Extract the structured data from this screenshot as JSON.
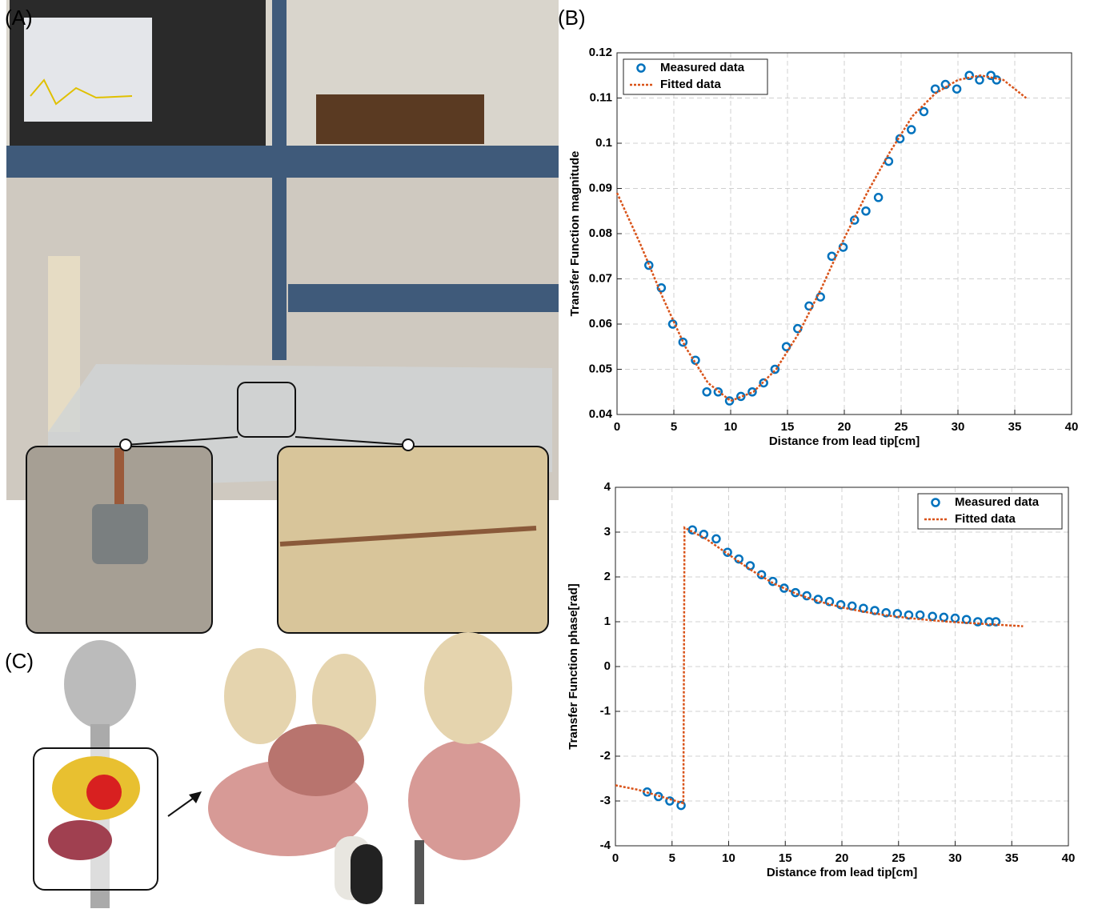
{
  "panel_labels": [
    "(A)",
    "(B)",
    "(C)"
  ],
  "chart_data": [
    {
      "type": "scatter-line",
      "xlabel": "Distance from lead tip[cm]",
      "ylabel": "Transfer Function magnitude",
      "xlim": [
        0,
        40
      ],
      "xticks": [
        0,
        5,
        10,
        15,
        20,
        25,
        30,
        35,
        40
      ],
      "ylim": [
        0.04,
        0.12
      ],
      "yticks": [
        0.04,
        0.05,
        0.06,
        0.07,
        0.08,
        0.09,
        0.1,
        0.11,
        0.12
      ],
      "grid": true,
      "legend": "upper-left",
      "series": [
        {
          "name": "Measured data",
          "color": "#0072bd",
          "style": "markers",
          "x": [
            2.8,
            3.9,
            4.9,
            5.8,
            6.9,
            7.9,
            8.9,
            9.9,
            10.9,
            11.9,
            12.9,
            13.9,
            14.9,
            15.9,
            16.9,
            17.9,
            18.9,
            19.9,
            20.9,
            21.9,
            23.0,
            23.9,
            24.9,
            25.9,
            27.0,
            28.0,
            28.9,
            29.9,
            31.0,
            31.9,
            32.9,
            33.4
          ],
          "values": [
            0.073,
            0.068,
            0.06,
            0.056,
            0.052,
            0.045,
            0.045,
            0.043,
            0.044,
            0.045,
            0.047,
            0.05,
            0.055,
            0.059,
            0.064,
            0.066,
            0.075,
            0.077,
            0.083,
            0.085,
            0.088,
            0.096,
            0.101,
            0.103,
            0.107,
            0.112,
            0.113,
            0.112,
            0.115,
            0.114,
            0.115,
            0.114
          ]
        },
        {
          "name": "Fitted data",
          "color": "#d95319",
          "style": "dotted-line",
          "x": [
            0,
            2,
            4,
            6,
            8,
            10,
            12,
            14,
            16,
            18,
            20,
            22,
            24,
            26,
            28,
            30,
            32,
            34,
            36
          ],
          "values": [
            0.089,
            0.078,
            0.066,
            0.055,
            0.047,
            0.043,
            0.045,
            0.05,
            0.058,
            0.068,
            0.079,
            0.089,
            0.098,
            0.106,
            0.111,
            0.114,
            0.115,
            0.114,
            0.11
          ]
        }
      ]
    },
    {
      "type": "scatter-line",
      "xlabel": "Distance from lead tip[cm]",
      "ylabel": "Transfer Function phase[rad]",
      "xlim": [
        0,
        40
      ],
      "xticks": [
        0,
        5,
        10,
        15,
        20,
        25,
        30,
        35,
        40
      ],
      "ylim": [
        -4,
        4
      ],
      "yticks": [
        -4,
        -3,
        -2,
        -1,
        0,
        1,
        2,
        3,
        4
      ],
      "grid": true,
      "legend": "upper-right",
      "series": [
        {
          "name": "Measured data",
          "color": "#0072bd",
          "style": "markers",
          "x": [
            2.8,
            3.8,
            4.8,
            5.8,
            6.8,
            7.8,
            8.9,
            9.9,
            10.9,
            11.9,
            12.9,
            13.9,
            14.9,
            15.9,
            16.9,
            17.9,
            18.9,
            19.9,
            20.9,
            21.9,
            22.9,
            23.9,
            24.9,
            25.9,
            26.9,
            28.0,
            29.0,
            30.0,
            31.0,
            32.0,
            33.0,
            33.6
          ],
          "values": [
            -2.8,
            -2.9,
            -3.0,
            -3.1,
            3.05,
            2.95,
            2.85,
            2.55,
            2.4,
            2.25,
            2.05,
            1.9,
            1.75,
            1.65,
            1.58,
            1.5,
            1.45,
            1.38,
            1.35,
            1.3,
            1.25,
            1.2,
            1.18,
            1.15,
            1.15,
            1.12,
            1.1,
            1.08,
            1.05,
            1.0,
            1.0,
            1.0
          ]
        },
        {
          "name": "Fitted data",
          "color": "#d95319",
          "style": "dotted-line",
          "x": [
            0,
            2,
            4,
            6,
            6.1,
            8,
            10,
            12,
            14,
            16,
            18,
            20,
            22,
            24,
            26,
            28,
            30,
            32,
            34,
            36
          ],
          "values": [
            -2.65,
            -2.75,
            -2.9,
            -3.05,
            3.1,
            2.85,
            2.5,
            2.15,
            1.85,
            1.62,
            1.45,
            1.32,
            1.22,
            1.14,
            1.08,
            1.03,
            0.99,
            0.96,
            0.93,
            0.9
          ]
        }
      ]
    }
  ]
}
